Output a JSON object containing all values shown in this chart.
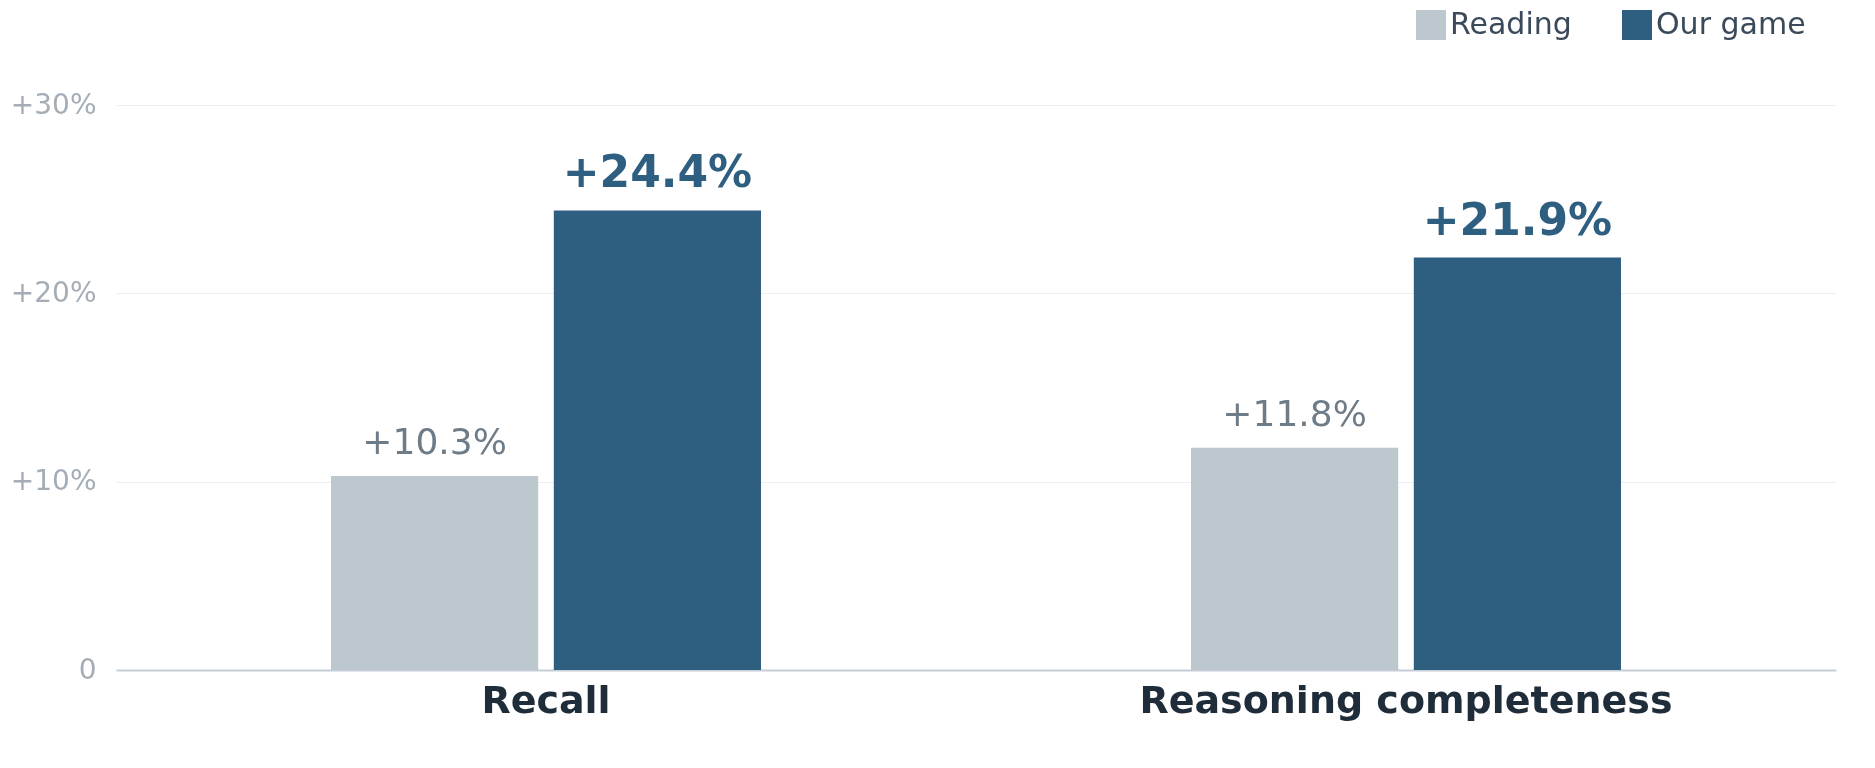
{
  "chart_data": {
    "type": "bar",
    "categories": [
      "Recall",
      "Reasoning completeness"
    ],
    "series": [
      {
        "name": "Reading",
        "color": "#bdc7ce",
        "values": [
          10.3,
          11.8
        ],
        "value_labels": [
          "+10.3%",
          "+11.8%"
        ]
      },
      {
        "name": "Our game",
        "color": "#2e5f80",
        "values": [
          24.4,
          21.9
        ],
        "value_labels": [
          "+24.4%",
          "+21.9%"
        ]
      }
    ],
    "ylim": [
      0,
      30
    ],
    "yticks": [
      0,
      {
        "value": 10,
        "label": "+10%"
      },
      {
        "value": 20,
        "label": "+20%"
      },
      {
        "value": 30,
        "label": "+30%"
      }
    ],
    "grid": "y",
    "legend": "top right"
  }
}
